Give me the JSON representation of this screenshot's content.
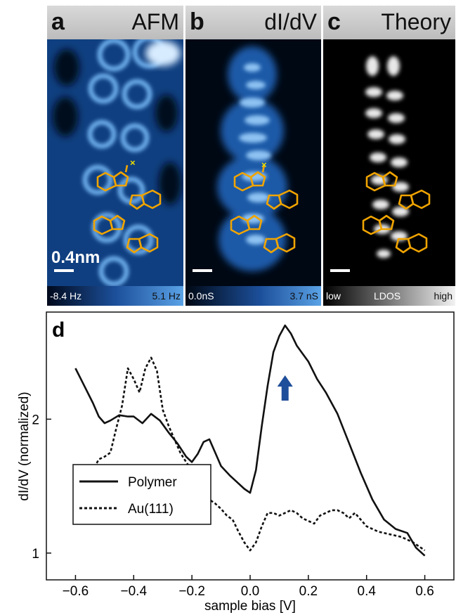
{
  "panels": [
    {
      "letter": "a",
      "title": "AFM",
      "scale_label": "0.4nm",
      "cbar_min": "-8.4 Hz",
      "cbar_max": "5.1 Hz"
    },
    {
      "letter": "b",
      "title": "dI/dV",
      "cbar_min": "0.0nS",
      "cbar_max": "3.7 nS"
    },
    {
      "letter": "c",
      "title": "Theory",
      "cbar_min": "low",
      "cbar_mid": "LDOS",
      "cbar_max": "high"
    }
  ],
  "colors": {
    "afm_blue": "#5aa2e6",
    "structure": "#f0a400",
    "arrow": "#1f4e9a"
  },
  "chart_data": {
    "type": "line",
    "panel_letter": "d",
    "xlabel": "sample bias [V]",
    "ylabel": "dI/dV  (normalized)",
    "xlim": [
      -0.7,
      0.7
    ],
    "ylim": [
      0.8,
      2.8
    ],
    "xticks": [
      -0.6,
      -0.4,
      -0.2,
      0.0,
      0.2,
      0.4,
      0.6
    ],
    "xtick_labels": [
      "−0.6",
      "−0.4",
      "−0.2",
      "0.0",
      "0.2",
      "0.4",
      "0.6"
    ],
    "yticks": [
      1,
      2
    ],
    "ytick_labels": [
      "1",
      "2"
    ],
    "legend_position": "bottom-left",
    "arrow_at_x": 0.12,
    "series": [
      {
        "name": "Polymer",
        "style": "solid",
        "x": [
          -0.6,
          -0.57,
          -0.54,
          -0.52,
          -0.5,
          -0.48,
          -0.45,
          -0.42,
          -0.4,
          -0.37,
          -0.34,
          -0.31,
          -0.28,
          -0.25,
          -0.22,
          -0.2,
          -0.18,
          -0.16,
          -0.14,
          -0.12,
          -0.1,
          -0.07,
          -0.04,
          -0.02,
          0.0,
          0.02,
          0.04,
          0.06,
          0.08,
          0.1,
          0.12,
          0.14,
          0.16,
          0.18,
          0.2,
          0.23,
          0.26,
          0.3,
          0.34,
          0.38,
          0.42,
          0.46,
          0.5,
          0.54,
          0.57,
          0.6
        ],
        "y": [
          2.38,
          2.25,
          2.12,
          2.02,
          1.97,
          1.99,
          2.03,
          2.02,
          2.02,
          1.97,
          2.04,
          1.99,
          1.9,
          1.82,
          1.72,
          1.68,
          1.74,
          1.83,
          1.85,
          1.75,
          1.65,
          1.58,
          1.52,
          1.48,
          1.45,
          1.62,
          1.95,
          2.25,
          2.5,
          2.62,
          2.7,
          2.64,
          2.55,
          2.49,
          2.43,
          2.3,
          2.2,
          2.04,
          1.82,
          1.6,
          1.4,
          1.25,
          1.18,
          1.15,
          1.04,
          0.98
        ]
      },
      {
        "name": "Au(111)",
        "style": "dashed",
        "x": [
          -0.6,
          -0.58,
          -0.56,
          -0.54,
          -0.52,
          -0.5,
          -0.48,
          -0.46,
          -0.44,
          -0.42,
          -0.4,
          -0.38,
          -0.36,
          -0.34,
          -0.32,
          -0.3,
          -0.28,
          -0.26,
          -0.24,
          -0.22,
          -0.2,
          -0.18,
          -0.16,
          -0.14,
          -0.12,
          -0.1,
          -0.08,
          -0.06,
          -0.04,
          -0.02,
          0.0,
          0.02,
          0.04,
          0.06,
          0.08,
          0.1,
          0.12,
          0.14,
          0.16,
          0.18,
          0.2,
          0.22,
          0.24,
          0.26,
          0.28,
          0.3,
          0.32,
          0.34,
          0.36,
          0.4,
          0.44,
          0.48,
          0.52,
          0.56,
          0.6
        ],
        "y": [
          1.45,
          1.52,
          1.62,
          1.62,
          1.7,
          1.72,
          1.75,
          1.93,
          2.1,
          2.38,
          2.3,
          2.2,
          2.38,
          2.46,
          2.36,
          2.07,
          1.95,
          1.85,
          1.75,
          1.68,
          1.62,
          1.55,
          1.46,
          1.4,
          1.37,
          1.33,
          1.28,
          1.25,
          1.16,
          1.08,
          1.02,
          1.08,
          1.2,
          1.3,
          1.3,
          1.28,
          1.3,
          1.32,
          1.3,
          1.26,
          1.24,
          1.22,
          1.28,
          1.3,
          1.32,
          1.32,
          1.3,
          1.26,
          1.3,
          1.2,
          1.16,
          1.14,
          1.12,
          1.08,
          1.02
        ]
      }
    ]
  }
}
